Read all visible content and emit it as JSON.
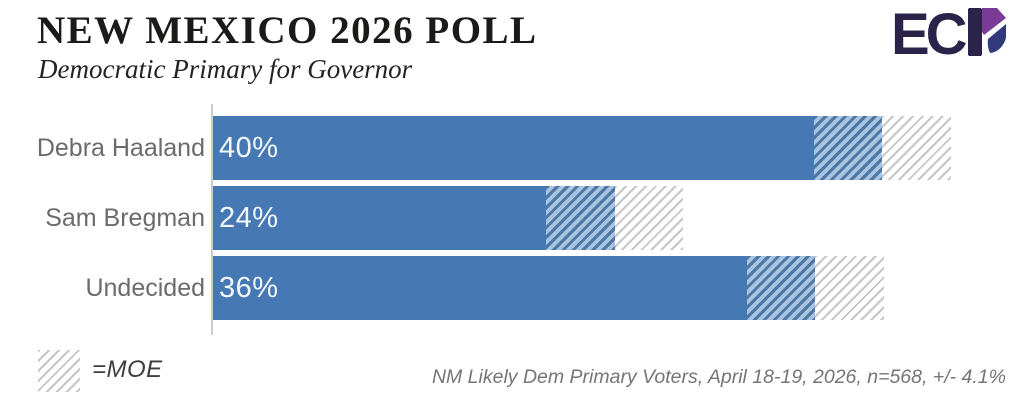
{
  "header": {
    "logo": {
      "text": "ECP",
      "ec_part": "EC"
    }
  },
  "chart_data": {
    "type": "bar",
    "orientation": "horizontal",
    "title": "NEW MEXICO 2026 POLL",
    "subtitle": "Democratic Primary for Governor",
    "categories": [
      "Debra Haaland",
      "Sam Bregman",
      "Undecided"
    ],
    "values": [
      40,
      24,
      36
    ],
    "value_labels": [
      "40%",
      "24%",
      "36%"
    ],
    "moe_percent": 4.1,
    "xlim": [
      0,
      44.1
    ],
    "grid": false,
    "legend": {
      "position": "bottom-left",
      "label": "=MOE"
    },
    "source": "NM Likely Dem Primary Voters, April 18-19, 2026, n=568, +/- 4.1%",
    "colors": {
      "bar_solid": "#4679b4",
      "moe_blue_stripe": "#4d77a4",
      "moe_blue_bg": "#a9c4e0",
      "moe_gray_stripe": "#c6c6c6",
      "moe_gray_bg": "#ffffff",
      "axis_line": "#cccccc",
      "label_text": "#6b6b6b",
      "value_text": "#f4f8fb"
    }
  },
  "branding": {
    "logo_dark": "#2b2349",
    "logo_purple": "#7b3a96",
    "logo_navy": "#333a7c"
  }
}
